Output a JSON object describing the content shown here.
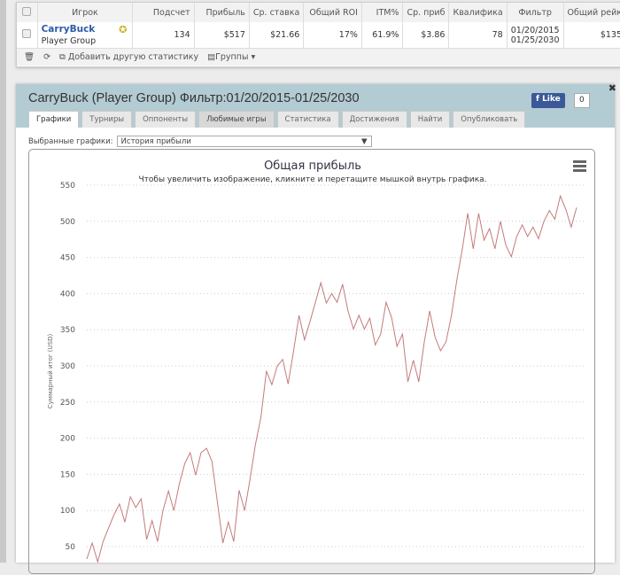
{
  "stats_table": {
    "headers": [
      "Игрок",
      "Подсчет",
      "Прибыль",
      "Ср. ставка",
      "Общий ROI",
      "ITM%",
      "Ср. приб",
      "Квалифика",
      "Фильтр",
      "Общий рейк"
    ],
    "row": {
      "player": "CarryBuck",
      "group": "Player Group",
      "count": "134",
      "profit": "$517",
      "avg_stake": "$21.66",
      "roi": "17%",
      "itm": "61.9%",
      "avg_profit": "$3.86",
      "qualified": "78",
      "filter_from": "01/20/2015",
      "filter_to": "01/25/2030",
      "rake": "$135"
    },
    "toolbar": {
      "add_stat": "Добавить другую статистику",
      "groups": "Группы"
    }
  },
  "panel": {
    "title": "CarryBuck (Player Group) Фильтр:01/20/2015-01/25/2030",
    "like": "Like",
    "like_count": "0",
    "tabs": [
      "Графики",
      "Турниры",
      "Оппоненты",
      "Любимые игры",
      "Статистика",
      "Достижения",
      "Найти",
      "Опубликовать"
    ],
    "selected_label": "Выбранные графики:",
    "selected_value": "История прибыли"
  },
  "chart_data": {
    "type": "line",
    "title": "Общая прибыль",
    "subtitle": "Чтобы увеличить изображение, кликните и перетащите мышкой внутрь графика.",
    "ylabel": "Суммарный итог (USD)",
    "yticks": [
      50,
      100,
      150,
      200,
      250,
      300,
      350,
      400,
      450,
      500,
      550
    ],
    "ylim": [
      20,
      560
    ],
    "grid": true,
    "color": "#c47a7a",
    "values": [
      33,
      55,
      29,
      57,
      76,
      94,
      109,
      84,
      119,
      104,
      116,
      60,
      86,
      57,
      100,
      127,
      100,
      137,
      165,
      180,
      149,
      180,
      186,
      168,
      111,
      55,
      84,
      57,
      128,
      100,
      143,
      192,
      229,
      293,
      274,
      300,
      309,
      275,
      321,
      370,
      336,
      361,
      388,
      415,
      387,
      400,
      388,
      413,
      376,
      351,
      370,
      351,
      366,
      329,
      344,
      388,
      367,
      327,
      344,
      278,
      308,
      278,
      333,
      376,
      340,
      321,
      333,
      370,
      419,
      462,
      511,
      462,
      511,
      474,
      490,
      462,
      500,
      467,
      451,
      479,
      495,
      479,
      492,
      476,
      500,
      515,
      503,
      535,
      517,
      492,
      519
    ]
  }
}
